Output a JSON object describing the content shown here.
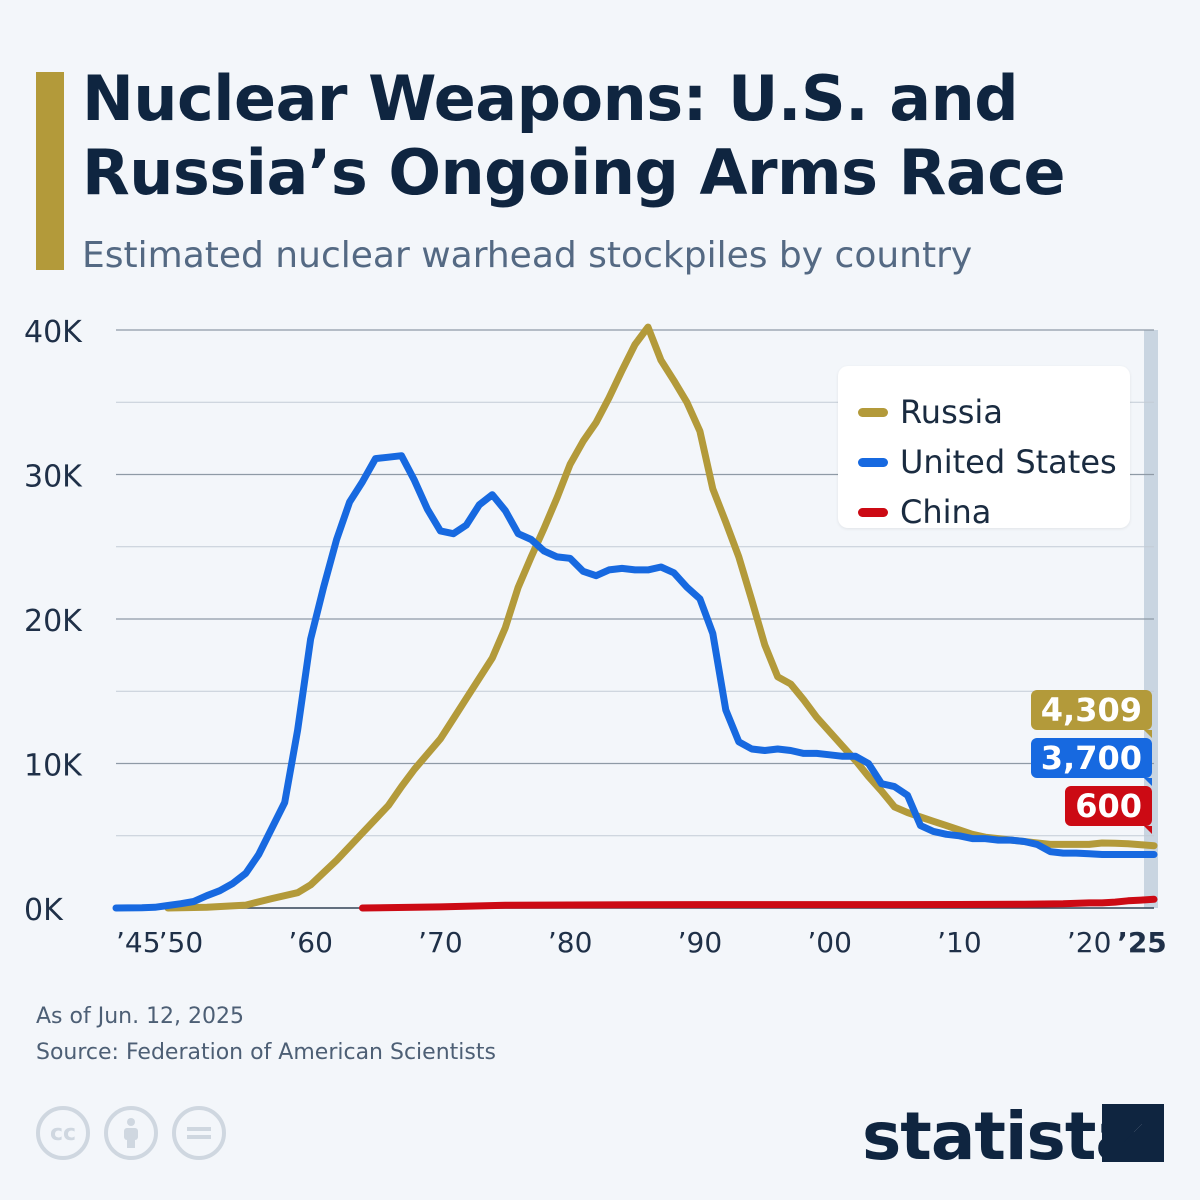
{
  "header": {
    "title": "Nuclear Weapons: U.S. and Russia’s Ongoing Arms Race",
    "subtitle": "Estimated nuclear warhead stockpiles by country",
    "accent_color": "#b39a3a"
  },
  "legend": {
    "position": "top-right",
    "items": [
      {
        "label": "Russia",
        "color": "#b39a3a"
      },
      {
        "label": "United States",
        "color": "#1769e0"
      },
      {
        "label": "China",
        "color": "#cc0a14"
      }
    ]
  },
  "badges": [
    {
      "value": "4,309",
      "color": "#b39a3a"
    },
    {
      "value": "3,700",
      "color": "#1769e0"
    },
    {
      "value": "600",
      "color": "#cc0a14"
    }
  ],
  "footer": {
    "as_of": "As of Jun. 12, 2025",
    "source": "Source: Federation of American Scientists",
    "brand": "statista",
    "icons": [
      "cc-icon",
      "attribution-icon",
      "no-derivatives-icon"
    ]
  },
  "chart_data": {
    "type": "line",
    "title": "Nuclear Weapons: U.S. and Russia’s Ongoing Arms Race",
    "subtitle": "Estimated nuclear warhead stockpiles by country",
    "xlim": [
      1945,
      2025
    ],
    "ylim": [
      0,
      40000
    ],
    "grid": true,
    "legend_position": "top-right",
    "highlight_year": 2025,
    "y_ticks": [
      {
        "value": 0,
        "label": "0K"
      },
      {
        "value": 10000,
        "label": "10K"
      },
      {
        "value": 20000,
        "label": "20K"
      },
      {
        "value": 30000,
        "label": "30K"
      },
      {
        "value": 40000,
        "label": "40K"
      }
    ],
    "x_ticks": [
      {
        "value": 1945,
        "label": "’45"
      },
      {
        "value": 1950,
        "label": "’50"
      },
      {
        "value": 1960,
        "label": "’60"
      },
      {
        "value": 1970,
        "label": "’70"
      },
      {
        "value": 1980,
        "label": "’80"
      },
      {
        "value": 1990,
        "label": "’90"
      },
      {
        "value": 2000,
        "label": "’00"
      },
      {
        "value": 2010,
        "label": "’10"
      },
      {
        "value": 2020,
        "label": "’20"
      },
      {
        "value": 2025,
        "label": "’25"
      }
    ],
    "series": [
      {
        "name": "Russia",
        "color": "#b39a3a",
        "points": [
          [
            1949,
            0
          ],
          [
            1952,
            50
          ],
          [
            1955,
            200
          ],
          [
            1957,
            650
          ],
          [
            1959,
            1060
          ],
          [
            1960,
            1600
          ],
          [
            1962,
            3300
          ],
          [
            1964,
            5200
          ],
          [
            1966,
            7100
          ],
          [
            1967,
            8400
          ],
          [
            1968,
            9600
          ],
          [
            1970,
            11700
          ],
          [
            1971,
            13100
          ],
          [
            1972,
            14500
          ],
          [
            1974,
            17300
          ],
          [
            1975,
            19400
          ],
          [
            1976,
            22200
          ],
          [
            1977,
            24300
          ],
          [
            1978,
            26300
          ],
          [
            1979,
            28400
          ],
          [
            1980,
            30700
          ],
          [
            1981,
            32300
          ],
          [
            1982,
            33600
          ],
          [
            1983,
            35300
          ],
          [
            1984,
            37200
          ],
          [
            1985,
            39000
          ],
          [
            1986,
            40200
          ],
          [
            1987,
            37900
          ],
          [
            1988,
            36500
          ],
          [
            1989,
            35000
          ],
          [
            1990,
            33000
          ],
          [
            1991,
            29000
          ],
          [
            1992,
            26700
          ],
          [
            1993,
            24300
          ],
          [
            1994,
            21300
          ],
          [
            1995,
            18200
          ],
          [
            1996,
            16000
          ],
          [
            1997,
            15500
          ],
          [
            1998,
            14400
          ],
          [
            1999,
            13200
          ],
          [
            2000,
            12200
          ],
          [
            2001,
            11200
          ],
          [
            2002,
            10200
          ],
          [
            2003,
            9100
          ],
          [
            2004,
            8100
          ],
          [
            2005,
            7000
          ],
          [
            2006,
            6600
          ],
          [
            2007,
            6300
          ],
          [
            2008,
            6000
          ],
          [
            2009,
            5700
          ],
          [
            2010,
            5400
          ],
          [
            2011,
            5100
          ],
          [
            2012,
            4900
          ],
          [
            2013,
            4800
          ],
          [
            2014,
            4700
          ],
          [
            2015,
            4600
          ],
          [
            2016,
            4500
          ],
          [
            2017,
            4400
          ],
          [
            2018,
            4400
          ],
          [
            2019,
            4400
          ],
          [
            2020,
            4400
          ],
          [
            2021,
            4500
          ],
          [
            2022,
            4480
          ],
          [
            2023,
            4450
          ],
          [
            2024,
            4380
          ],
          [
            2025,
            4309
          ]
        ]
      },
      {
        "name": "United States",
        "color": "#1769e0",
        "points": [
          [
            1945,
            2
          ],
          [
            1946,
            9
          ],
          [
            1947,
            13
          ],
          [
            1948,
            50
          ],
          [
            1949,
            170
          ],
          [
            1950,
            300
          ],
          [
            1951,
            450
          ],
          [
            1952,
            850
          ],
          [
            1953,
            1200
          ],
          [
            1954,
            1700
          ],
          [
            1955,
            2400
          ],
          [
            1956,
            3700
          ],
          [
            1957,
            5500
          ],
          [
            1958,
            7300
          ],
          [
            1959,
            12300
          ],
          [
            1960,
            18600
          ],
          [
            1961,
            22200
          ],
          [
            1962,
            25500
          ],
          [
            1963,
            28100
          ],
          [
            1964,
            29500
          ],
          [
            1965,
            31100
          ],
          [
            1966,
            31200
          ],
          [
            1967,
            31300
          ],
          [
            1968,
            29600
          ],
          [
            1969,
            27600
          ],
          [
            1970,
            26100
          ],
          [
            1971,
            25900
          ],
          [
            1972,
            26500
          ],
          [
            1973,
            27900
          ],
          [
            1974,
            28600
          ],
          [
            1975,
            27500
          ],
          [
            1976,
            25900
          ],
          [
            1977,
            25500
          ],
          [
            1978,
            24700
          ],
          [
            1979,
            24300
          ],
          [
            1980,
            24200
          ],
          [
            1981,
            23300
          ],
          [
            1982,
            23000
          ],
          [
            1983,
            23400
          ],
          [
            1984,
            23500
          ],
          [
            1985,
            23400
          ],
          [
            1986,
            23400
          ],
          [
            1987,
            23600
          ],
          [
            1988,
            23200
          ],
          [
            1989,
            22200
          ],
          [
            1990,
            21400
          ],
          [
            1991,
            19000
          ],
          [
            1992,
            13700
          ],
          [
            1993,
            11500
          ],
          [
            1994,
            11000
          ],
          [
            1995,
            10900
          ],
          [
            1996,
            11000
          ],
          [
            1997,
            10900
          ],
          [
            1998,
            10700
          ],
          [
            1999,
            10700
          ],
          [
            2000,
            10600
          ],
          [
            2001,
            10500
          ],
          [
            2002,
            10500
          ],
          [
            2003,
            10000
          ],
          [
            2004,
            8600
          ],
          [
            2005,
            8400
          ],
          [
            2006,
            7800
          ],
          [
            2007,
            5700
          ],
          [
            2008,
            5300
          ],
          [
            2009,
            5100
          ],
          [
            2010,
            5000
          ],
          [
            2011,
            4800
          ],
          [
            2012,
            4800
          ],
          [
            2013,
            4700
          ],
          [
            2014,
            4700
          ],
          [
            2015,
            4600
          ],
          [
            2016,
            4400
          ],
          [
            2017,
            3900
          ],
          [
            2018,
            3800
          ],
          [
            2019,
            3800
          ],
          [
            2020,
            3750
          ],
          [
            2021,
            3700
          ],
          [
            2022,
            3700
          ],
          [
            2023,
            3700
          ],
          [
            2024,
            3700
          ],
          [
            2025,
            3700
          ]
        ]
      },
      {
        "name": "China",
        "color": "#cc0a14",
        "points": [
          [
            1964,
            1
          ],
          [
            1970,
            75
          ],
          [
            1975,
            185
          ],
          [
            1980,
            205
          ],
          [
            1985,
            222
          ],
          [
            1990,
            232
          ],
          [
            1995,
            234
          ],
          [
            2000,
            232
          ],
          [
            2005,
            235
          ],
          [
            2010,
            240
          ],
          [
            2015,
            260
          ],
          [
            2018,
            290
          ],
          [
            2020,
            350
          ],
          [
            2021,
            350
          ],
          [
            2022,
            410
          ],
          [
            2023,
            500
          ],
          [
            2024,
            550
          ],
          [
            2025,
            600
          ]
        ]
      }
    ],
    "end_labels": [
      "4,309",
      "3,700",
      "600"
    ]
  }
}
